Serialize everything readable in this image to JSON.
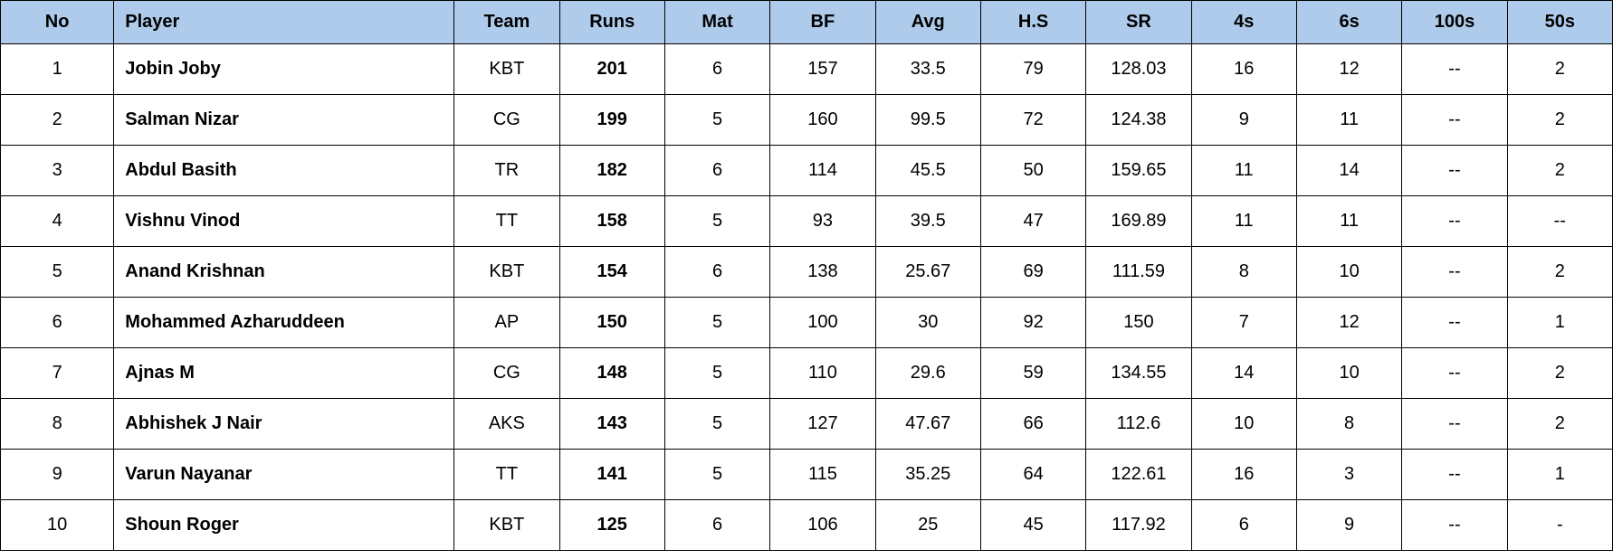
{
  "table": {
    "header_bg_color": "#aecbeb",
    "border_color": "#000000",
    "font_family": "Arial, Helvetica, sans-serif",
    "header_font_size": 20,
    "cell_font_size": 20,
    "columns": [
      {
        "key": "no",
        "label": "No",
        "align": "center",
        "bold": false
      },
      {
        "key": "player",
        "label": "Player",
        "align": "left",
        "bold": true
      },
      {
        "key": "team",
        "label": "Team",
        "align": "center",
        "bold": false
      },
      {
        "key": "runs",
        "label": "Runs",
        "align": "center",
        "bold": true
      },
      {
        "key": "mat",
        "label": "Mat",
        "align": "center",
        "bold": false
      },
      {
        "key": "bf",
        "label": "BF",
        "align": "center",
        "bold": false
      },
      {
        "key": "avg",
        "label": "Avg",
        "align": "center",
        "bold": false
      },
      {
        "key": "hs",
        "label": "H.S",
        "align": "center",
        "bold": false
      },
      {
        "key": "sr",
        "label": "SR",
        "align": "center",
        "bold": false
      },
      {
        "key": "fours",
        "label": "4s",
        "align": "center",
        "bold": false
      },
      {
        "key": "sixes",
        "label": "6s",
        "align": "center",
        "bold": false
      },
      {
        "key": "hundreds",
        "label": "100s",
        "align": "center",
        "bold": false
      },
      {
        "key": "fifties",
        "label": "50s",
        "align": "center",
        "bold": false
      }
    ],
    "rows": [
      {
        "no": "1",
        "player": "Jobin Joby",
        "team": "KBT",
        "runs": "201",
        "mat": "6",
        "bf": "157",
        "avg": "33.5",
        "hs": "79",
        "sr": "128.03",
        "fours": "16",
        "sixes": "12",
        "hundreds": "--",
        "fifties": "2"
      },
      {
        "no": "2",
        "player": "Salman Nizar",
        "team": "CG",
        "runs": "199",
        "mat": "5",
        "bf": "160",
        "avg": "99.5",
        "hs": "72",
        "sr": "124.38",
        "fours": "9",
        "sixes": "11",
        "hundreds": "--",
        "fifties": "2"
      },
      {
        "no": "3",
        "player": "Abdul Basith",
        "team": "TR",
        "runs": "182",
        "mat": "6",
        "bf": "114",
        "avg": "45.5",
        "hs": "50",
        "sr": "159.65",
        "fours": "11",
        "sixes": "14",
        "hundreds": "--",
        "fifties": "2"
      },
      {
        "no": "4",
        "player": "Vishnu Vinod",
        "team": "TT",
        "runs": "158",
        "mat": "5",
        "bf": "93",
        "avg": "39.5",
        "hs": "47",
        "sr": "169.89",
        "fours": "11",
        "sixes": "11",
        "hundreds": "--",
        "fifties": "--"
      },
      {
        "no": "5",
        "player": "Anand Krishnan",
        "team": "KBT",
        "runs": "154",
        "mat": "6",
        "bf": "138",
        "avg": "25.67",
        "hs": "69",
        "sr": "111.59",
        "fours": "8",
        "sixes": "10",
        "hundreds": "--",
        "fifties": "2"
      },
      {
        "no": "6",
        "player": "Mohammed Azharuddeen",
        "team": "AP",
        "runs": "150",
        "mat": "5",
        "bf": "100",
        "avg": "30",
        "hs": "92",
        "sr": "150",
        "fours": "7",
        "sixes": "12",
        "hundreds": "--",
        "fifties": "1"
      },
      {
        "no": "7",
        "player": "Ajnas M",
        "team": "CG",
        "runs": "148",
        "mat": "5",
        "bf": "110",
        "avg": "29.6",
        "hs": "59",
        "sr": "134.55",
        "fours": "14",
        "sixes": "10",
        "hundreds": "--",
        "fifties": "2"
      },
      {
        "no": "8",
        "player": "Abhishek J Nair",
        "team": "AKS",
        "runs": "143",
        "mat": "5",
        "bf": "127",
        "avg": "47.67",
        "hs": "66",
        "sr": "112.6",
        "fours": "10",
        "sixes": "8",
        "hundreds": "--",
        "fifties": "2"
      },
      {
        "no": "9",
        "player": "Varun Nayanar",
        "team": "TT",
        "runs": "141",
        "mat": "5",
        "bf": "115",
        "avg": "35.25",
        "hs": "64",
        "sr": "122.61",
        "fours": "16",
        "sixes": "3",
        "hundreds": "--",
        "fifties": "1"
      },
      {
        "no": "10",
        "player": "Shoun Roger",
        "team": "KBT",
        "runs": "125",
        "mat": "6",
        "bf": "106",
        "avg": "25",
        "hs": "45",
        "sr": "117.92",
        "fours": "6",
        "sixes": "9",
        "hundreds": "--",
        "fifties": "-"
      }
    ]
  }
}
